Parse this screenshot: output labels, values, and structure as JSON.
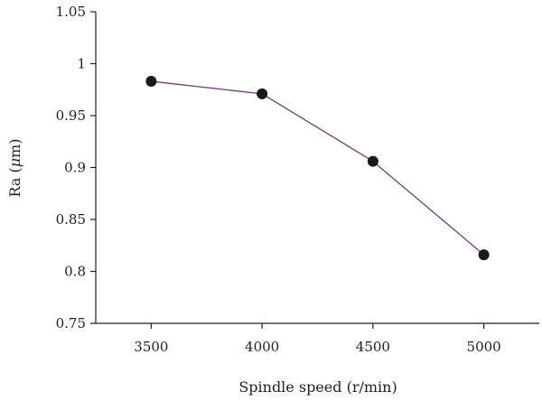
{
  "chart_data": {
    "type": "line",
    "title": "",
    "xlabel": "Spindle speed (r/min)",
    "ylabel_prefix": "Ra (",
    "ylabel_unit": "μ",
    "ylabel_suffix": "m)",
    "x": [
      3500,
      4000,
      4500,
      5000
    ],
    "x_tick_labels": [
      "3500",
      "4000",
      "4500",
      "5000"
    ],
    "xlim": [
      3250,
      5250
    ],
    "ylim": [
      0.75,
      1.05
    ],
    "y_ticks": [
      0.75,
      0.8,
      0.85,
      0.9,
      0.95,
      1.0,
      1.05
    ],
    "y_tick_labels": [
      "0.75",
      "0.8",
      "0.85",
      "0.9",
      "0.95",
      "1",
      "1.05"
    ],
    "series": [
      {
        "values": [
          0.983,
          0.971,
          0.906,
          0.816
        ],
        "color": "#6b3d7a",
        "marker_color": "#1a1a1a"
      }
    ],
    "grid": false,
    "legend": "none"
  }
}
